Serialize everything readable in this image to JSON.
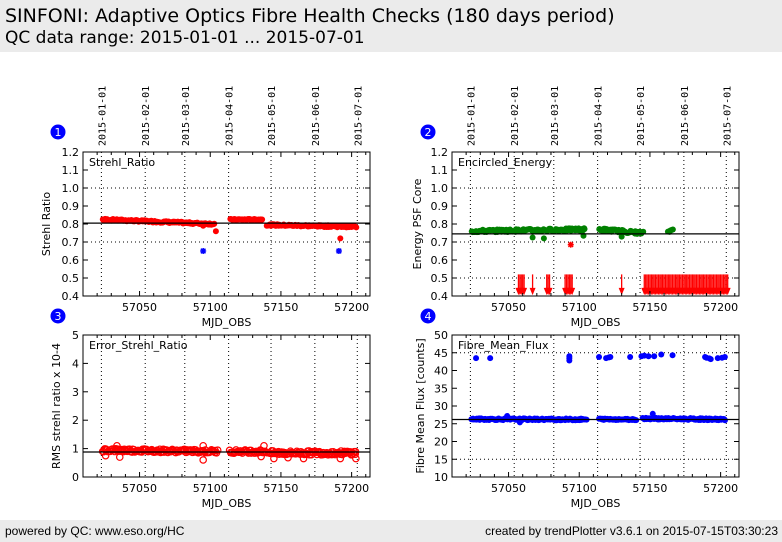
{
  "header": {
    "title": "SINFONI: Adaptive Optics Fibre Health Checks (180 days period)",
    "subtitle": "QC data range: 2015-01-01 ... 2015-07-01"
  },
  "footer": {
    "left": "powered by QC: www.eso.org/HC",
    "right": "created by trendPlotter v3.6.1 on 2015-07-15T03:30:23"
  },
  "colors": {
    "red": "#ff0000",
    "green": "#008000",
    "blue": "#0000ff",
    "badge": "#0000ff"
  },
  "chart_data": [
    {
      "type": "scatter",
      "badge": "1",
      "label": "Strehl_Ratio",
      "xlabel": "MJD_OBS",
      "ylabel": "Strehl Ratio",
      "xlim": [
        57010,
        57213
      ],
      "ylim": [
        0.4,
        1.2
      ],
      "xticks": [
        "57050",
        "57100",
        "57150",
        "57200"
      ],
      "xtick_values": [
        57050,
        57100,
        57150,
        57200
      ],
      "yticks": [
        "0.4",
        "0.5",
        "0.6",
        "0.7",
        "0.8",
        "0.9",
        "1.0",
        "1.1",
        "1.2"
      ],
      "ytick_values": [
        0.4,
        0.5,
        0.6,
        0.7,
        0.8,
        0.9,
        1.0,
        1.1,
        1.2
      ],
      "date_ticks": [
        "2015-01-01",
        "2015-02-01",
        "2015-03-01",
        "2015-04-01",
        "2015-05-01",
        "2015-06-01",
        "2015-07-01"
      ],
      "date_tick_mjd": [
        57023,
        57054,
        57082,
        57113,
        57143,
        57174,
        57204
      ],
      "hgrid": [
        1.0,
        0.7
      ],
      "reference_line": 0.805,
      "series": [
        {
          "name": "main",
          "marker": "dot",
          "color": "#ff0000",
          "segments": [
            [
              57024,
              57103,
              0.825,
              0.8,
              0.01
            ],
            [
              57114,
              57137,
              0.825,
              0.825,
              0.006
            ],
            [
              57140,
              57203,
              0.795,
              0.785,
              0.01
            ]
          ]
        },
        {
          "name": "outliers",
          "marker": "dot",
          "color": "#ff0000",
          "points": [
            [
              57095,
              0.79
            ],
            [
              57104,
              0.76
            ],
            [
              57192,
              0.72
            ]
          ]
        },
        {
          "name": "flagged",
          "marker": "star",
          "color": "#0000ff",
          "points": [
            [
              57095,
              0.65
            ],
            [
              57191,
              0.65
            ]
          ]
        }
      ]
    },
    {
      "type": "scatter",
      "badge": "2",
      "label": "Encircled_Energy",
      "xlabel": "MJD_OBS",
      "ylabel": "Energy PSF Core",
      "xlim": [
        57010,
        57213
      ],
      "ylim": [
        0.4,
        1.2
      ],
      "xticks": [
        "57050",
        "57100",
        "57150",
        "57200"
      ],
      "xtick_values": [
        57050,
        57100,
        57150,
        57200
      ],
      "yticks": [
        "0.4",
        "0.5",
        "0.6",
        "0.7",
        "0.8",
        "0.9",
        "1.0",
        "1.1",
        "1.2"
      ],
      "ytick_values": [
        0.4,
        0.5,
        0.6,
        0.7,
        0.8,
        0.9,
        1.0,
        1.1,
        1.2
      ],
      "date_ticks": [
        "2015-01-01",
        "2015-02-01",
        "2015-03-01",
        "2015-04-01",
        "2015-05-01",
        "2015-06-01",
        "2015-07-01"
      ],
      "date_tick_mjd": [
        57023,
        57054,
        57082,
        57113,
        57143,
        57174,
        57204
      ],
      "hgrid": [
        1.0,
        0.7,
        0.5
      ],
      "reference_line": 0.745,
      "series": [
        {
          "name": "main",
          "marker": "dot",
          "color": "#008000",
          "segments": [
            [
              57024,
              57104,
              0.76,
              0.77,
              0.015
            ],
            [
              57114,
              57145,
              0.77,
              0.75,
              0.015
            ],
            [
              57163,
              57166,
              0.755,
              0.77,
              0.01
            ]
          ]
        },
        {
          "name": "outliers",
          "marker": "dot",
          "color": "#008000",
          "points": [
            [
              57067,
              0.725
            ],
            [
              57075,
              0.72
            ],
            [
              57103,
              0.735
            ],
            [
              57130,
              0.73
            ]
          ]
        },
        {
          "name": "flagged",
          "marker": "star",
          "color": "#ff0000",
          "points": [
            [
              57094,
              0.685
            ]
          ]
        },
        {
          "name": "below-range",
          "marker": "arrow-down",
          "color": "#ff0000",
          "x": [
            57057,
            57058,
            57059,
            57060,
            57061,
            57067,
            57077,
            57078,
            57079,
            57090,
            57091,
            57092,
            57093,
            57094,
            57095,
            57130,
            57146,
            57147,
            57148,
            57149,
            57150,
            57151,
            57152,
            57153,
            57154,
            57155,
            57156,
            57157,
            57158,
            57159,
            57160,
            57161,
            57162,
            57163,
            57164,
            57165,
            57166,
            57167,
            57168,
            57169,
            57170,
            57171,
            57172,
            57173,
            57174,
            57175,
            57176,
            57177,
            57178,
            57179,
            57180,
            57181,
            57182,
            57183,
            57184,
            57185,
            57186,
            57187,
            57188,
            57189,
            57190,
            57191,
            57192,
            57193,
            57194,
            57195,
            57196,
            57197,
            57198,
            57199,
            57200,
            57201,
            57202,
            57203,
            57204,
            57205
          ]
        }
      ]
    },
    {
      "type": "scatter",
      "badge": "3",
      "label": "Error_Strehl_Ratio",
      "xlabel": "MJD_OBS",
      "ylabel": "RMS strehl ratio x 10-4",
      "xlim": [
        57010,
        57213
      ],
      "ylim": [
        0,
        5
      ],
      "xticks": [
        "57050",
        "57100",
        "57150",
        "57200"
      ],
      "xtick_values": [
        57050,
        57100,
        57150,
        57200
      ],
      "yticks": [
        "0",
        "1",
        "2",
        "3",
        "4",
        "5"
      ],
      "ytick_values": [
        0,
        1,
        2,
        3,
        4,
        5
      ],
      "date_tick_mjd": [
        57023,
        57054,
        57082,
        57113,
        57143,
        57174,
        57204
      ],
      "hgrid": [],
      "reference_line": 0.88,
      "series": [
        {
          "name": "main",
          "marker": "circle",
          "color": "#ff0000",
          "segments": [
            [
              57024,
              57105,
              0.95,
              0.9,
              0.12
            ],
            [
              57114,
              57140,
              0.9,
              0.9,
              0.12
            ],
            [
              57142,
              57203,
              0.85,
              0.85,
              0.14
            ]
          ]
        },
        {
          "name": "outliers",
          "marker": "circle",
          "color": "#ff0000",
          "points": [
            [
              57026,
              0.75
            ],
            [
              57036,
              0.7
            ],
            [
              57034,
              1.1
            ],
            [
              57095,
              0.6
            ],
            [
              57095,
              1.1
            ],
            [
              57138,
              1.1
            ],
            [
              57136,
              0.72
            ],
            [
              57145,
              0.65
            ],
            [
              57155,
              0.68
            ],
            [
              57166,
              0.65
            ],
            [
              57192,
              0.65
            ],
            [
              57203,
              0.65
            ]
          ]
        }
      ]
    },
    {
      "type": "scatter",
      "badge": "4",
      "label": "Fibre_Mean_Flux",
      "xlabel": "MJD_OBS",
      "ylabel": "Fibre Mean Flux [counts]",
      "xlim": [
        57010,
        57213
      ],
      "ylim": [
        10,
        50
      ],
      "xticks": [
        "57050",
        "57100",
        "57150",
        "57200"
      ],
      "xtick_values": [
        57050,
        57100,
        57150,
        57200
      ],
      "yticks": [
        "10",
        "15",
        "20",
        "25",
        "30",
        "35",
        "40",
        "45",
        "50"
      ],
      "ytick_values": [
        10,
        15,
        20,
        25,
        30,
        35,
        40,
        45,
        50
      ],
      "date_tick_mjd": [
        57023,
        57054,
        57082,
        57113,
        57143,
        57174,
        57204
      ],
      "hgrid": [
        45,
        15
      ],
      "reference_line": 26.2,
      "series": [
        {
          "name": "main",
          "marker": "dot",
          "color": "#0000ff",
          "segments": [
            [
              57024,
              57105,
              26.3,
              26.2,
              0.5
            ],
            [
              57114,
              57140,
              26.3,
              26.2,
              0.4
            ],
            [
              57145,
              57203,
              26.5,
              26.2,
              0.5
            ]
          ]
        },
        {
          "name": "upper",
          "marker": "dot",
          "color": "#0000ff",
          "points": [
            [
              57027,
              43.5
            ],
            [
              57037,
              43.5
            ],
            [
              57093,
              42.8
            ],
            [
              57093,
              43.5
            ],
            [
              57093,
              44.0
            ],
            [
              57114,
              43.8
            ],
            [
              57119,
              43.5
            ],
            [
              57121,
              43.7
            ],
            [
              57122,
              43.8
            ],
            [
              57136,
              43.8
            ],
            [
              57144,
              44.0
            ],
            [
              57146,
              44.2
            ],
            [
              57149,
              44.0
            ],
            [
              57153,
              44.0
            ],
            [
              57158,
              44.5
            ],
            [
              57166,
              44.3
            ],
            [
              57189,
              43.8
            ],
            [
              57190,
              43.6
            ],
            [
              57192,
              43.4
            ],
            [
              57193,
              43.2
            ],
            [
              57198,
              43.5
            ],
            [
              57201,
              43.6
            ],
            [
              57203,
              43.8
            ]
          ]
        },
        {
          "name": "outliers",
          "marker": "dot",
          "color": "#0000ff",
          "points": [
            [
              57049,
              27.2
            ],
            [
              57152,
              27.8
            ],
            [
              57058,
              25.4
            ]
          ]
        }
      ]
    }
  ]
}
